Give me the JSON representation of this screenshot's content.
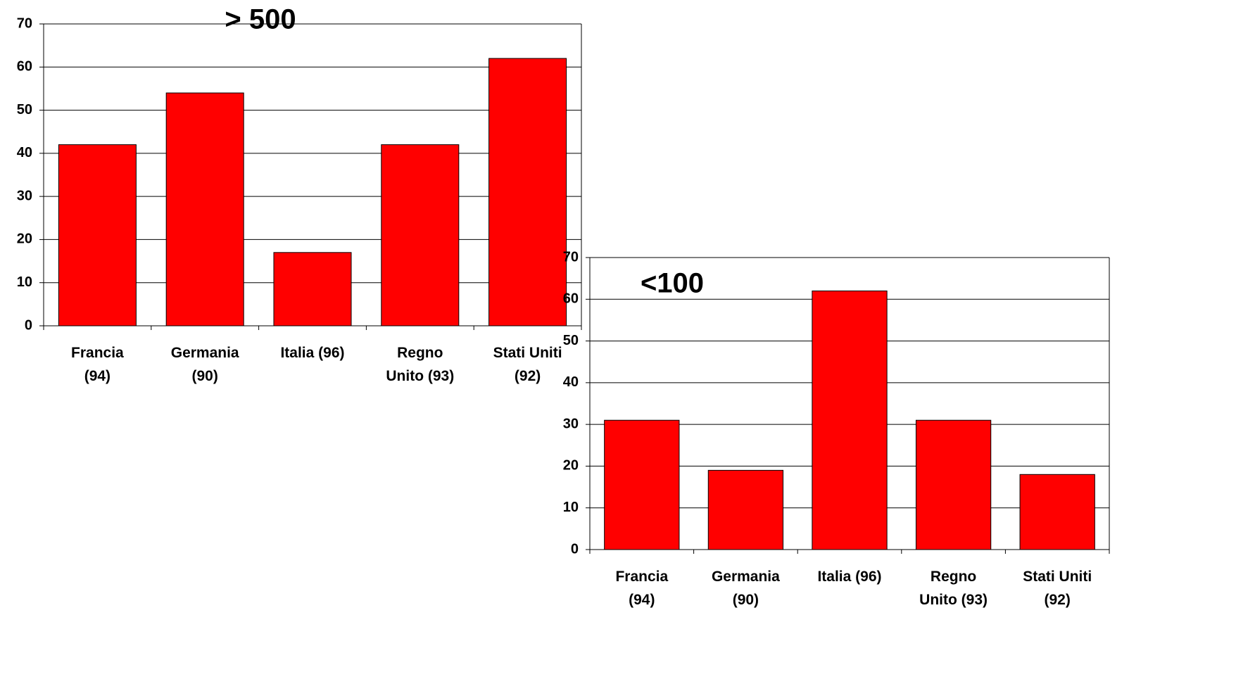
{
  "chart_data": [
    {
      "type": "bar",
      "title": "> 500",
      "categories": [
        "Francia (94)",
        "Germania (90)",
        "Italia (96)",
        "Regno Unito (93)",
        "Stati Uniti (92)"
      ],
      "values": [
        42,
        54,
        17,
        42,
        62
      ],
      "color": "#ff0000",
      "ylim": [
        0,
        70
      ],
      "yticks": [
        0,
        10,
        20,
        30,
        40,
        50,
        60,
        70
      ],
      "grid": true
    },
    {
      "type": "bar",
      "title": "<100",
      "categories": [
        "Francia (94)",
        "Germania (90)",
        "Italia (96)",
        "Regno Unito (93)",
        "Stati Uniti (92)"
      ],
      "values": [
        31,
        19,
        62,
        31,
        18
      ],
      "color": "#ff0000",
      "ylim": [
        0,
        70
      ],
      "yticks": [
        0,
        10,
        20,
        30,
        40,
        50,
        60,
        70
      ],
      "grid": true
    }
  ]
}
